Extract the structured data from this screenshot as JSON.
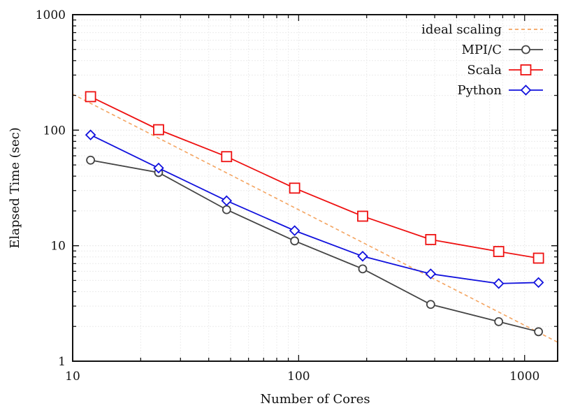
{
  "chart_data": {
    "type": "line",
    "title": "",
    "xlabel": "Number of Cores",
    "ylabel": "Elapsed Time (sec)",
    "xscale": "log",
    "yscale": "log",
    "xlim": [
      10,
      1400
    ],
    "ylim": [
      1,
      1000
    ],
    "x_ticks": [
      10,
      100,
      1000
    ],
    "x_tick_labels": [
      "10",
      "100",
      "1000"
    ],
    "y_ticks": [
      1,
      10,
      100,
      1000
    ],
    "y_tick_labels": [
      "1",
      "10",
      "100",
      "1000"
    ],
    "grid": true,
    "legend_position": "top-right",
    "series": [
      {
        "name": "ideal scaling",
        "color": "#f4a460",
        "style": "dashed",
        "marker": "none",
        "x": [
          10,
          1400
        ],
        "y": [
          205,
          1.46
        ]
      },
      {
        "name": "MPI/C",
        "color": "#444444",
        "style": "solid",
        "marker": "circle",
        "x": [
          12,
          24,
          48,
          96,
          192,
          384,
          768,
          1152
        ],
        "y": [
          55,
          43,
          20.5,
          11,
          6.3,
          3.1,
          2.2,
          1.8
        ]
      },
      {
        "name": "Scala",
        "color": "#ee1111",
        "style": "solid",
        "marker": "square",
        "x": [
          12,
          24,
          48,
          96,
          192,
          384,
          768,
          1152
        ],
        "y": [
          195,
          101,
          59,
          31.5,
          18,
          11.3,
          8.9,
          7.8
        ]
      },
      {
        "name": "Python",
        "color": "#1111dd",
        "style": "solid",
        "marker": "diamond",
        "x": [
          12,
          24,
          48,
          96,
          192,
          384,
          768,
          1152
        ],
        "y": [
          91,
          47,
          24.5,
          13.5,
          8.1,
          5.7,
          4.7,
          4.8
        ]
      }
    ]
  }
}
